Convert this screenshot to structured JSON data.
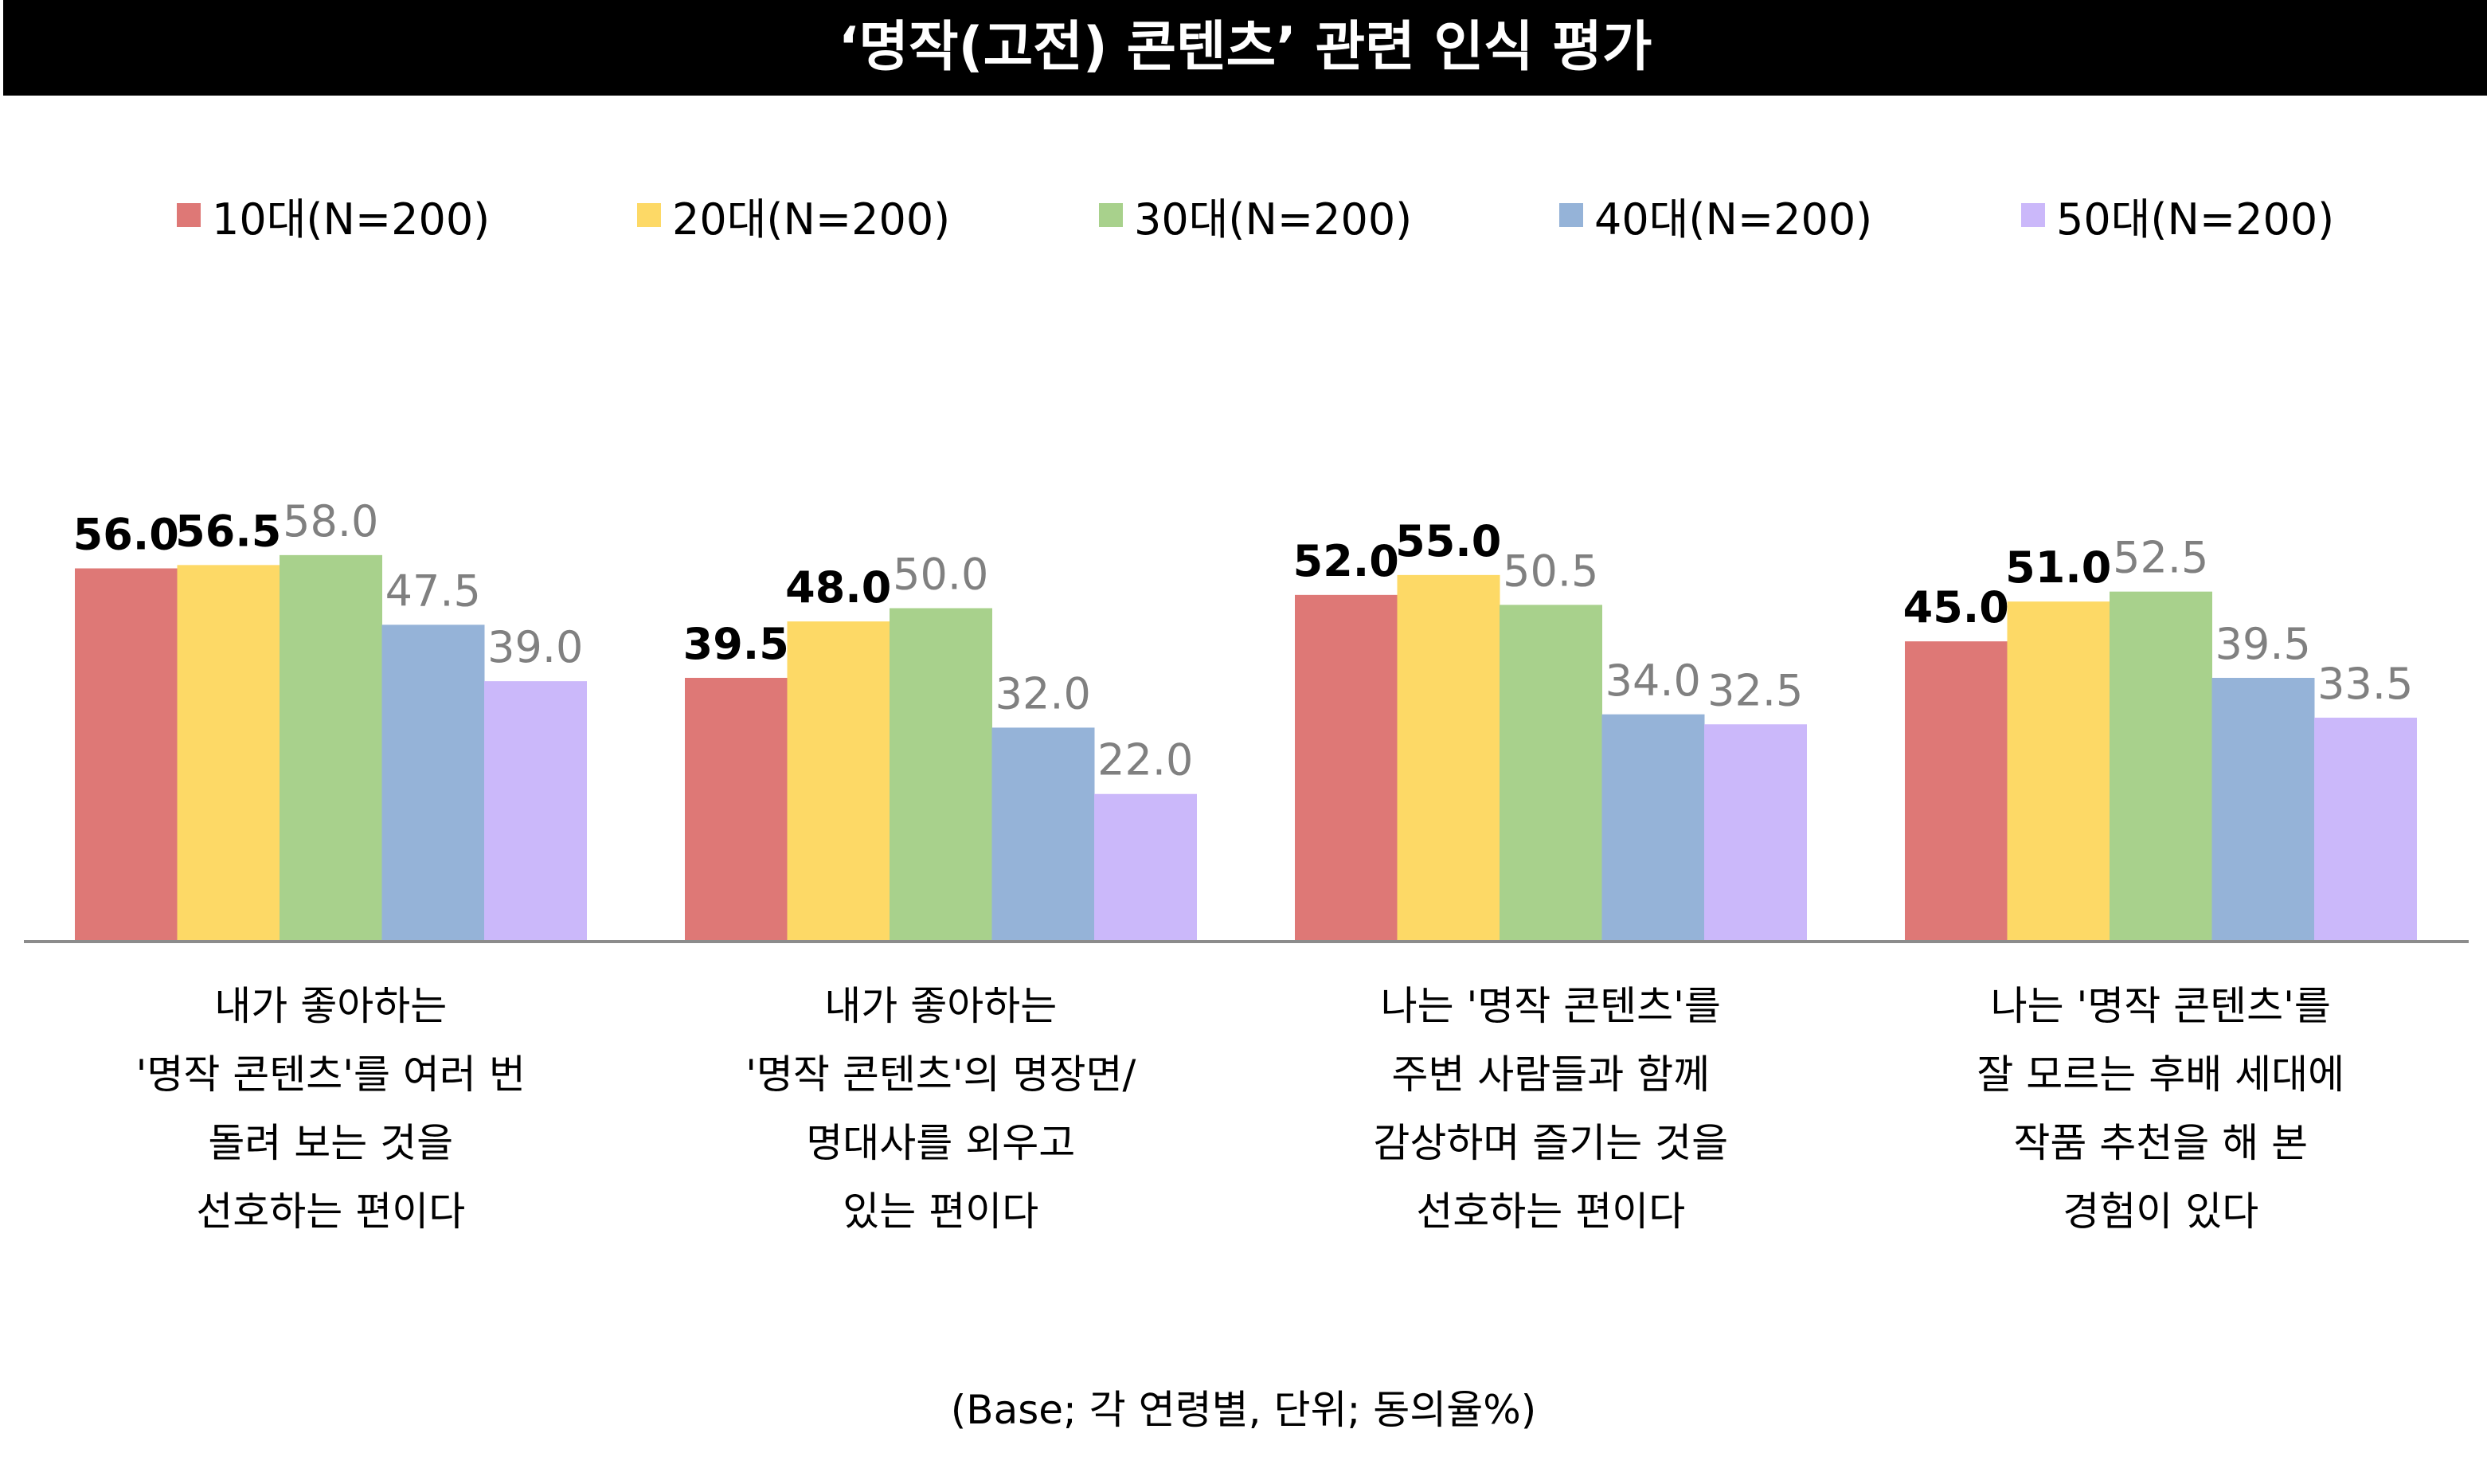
{
  "title": "‘명작(고전) 콘텐츠’ 관련 인식 평가",
  "footer": "(Base; 각 연령별, 단위; 동의율%)",
  "chart_data": {
    "type": "bar",
    "title": "‘명작(고전) 콘텐츠’ 관련 인식 평가",
    "xlabel": "",
    "ylabel": "동의율%",
    "ylim": [
      0,
      70
    ],
    "grid": false,
    "legend_position": "top",
    "categories": [
      [
        "내가 좋아하는",
        "'명작 콘텐츠'를 여러 번",
        "돌려 보는 것을",
        "선호하는 편이다"
      ],
      [
        "내가 좋아하는",
        "'명작 콘텐츠'의 명장면/",
        "명대사를 외우고",
        "있는 편이다"
      ],
      [
        "나는 '명작 콘텐츠'를",
        "주변 사람들과 함께",
        "감상하며 즐기는 것을",
        "선호하는 편이다"
      ],
      [
        "나는 '명작 콘텐츠'를",
        "잘 모르는 후배 세대에",
        "작품 추천을 해 본",
        "경험이 있다"
      ]
    ],
    "series": [
      {
        "name": "10대(N=200)",
        "color": "#DE7876",
        "label_color": "#000000",
        "values": [
          56.0,
          39.5,
          52.0,
          45.0
        ]
      },
      {
        "name": "20대(N=200)",
        "color": "#FDD966",
        "label_color": "#000000",
        "values": [
          56.5,
          48.0,
          55.0,
          51.0
        ]
      },
      {
        "name": "30대(N=200)",
        "color": "#A8D18C",
        "label_color": "#808080",
        "values": [
          58.0,
          50.0,
          50.5,
          52.5
        ]
      },
      {
        "name": "40대(N=200)",
        "color": "#95B3D8",
        "label_color": "#808080",
        "values": [
          47.5,
          32.0,
          34.0,
          39.5
        ]
      },
      {
        "name": "50대(N=200)",
        "color": "#CBB8FA",
        "label_color": "#808080",
        "values": [
          39.0,
          22.0,
          32.5,
          33.5
        ]
      }
    ]
  }
}
